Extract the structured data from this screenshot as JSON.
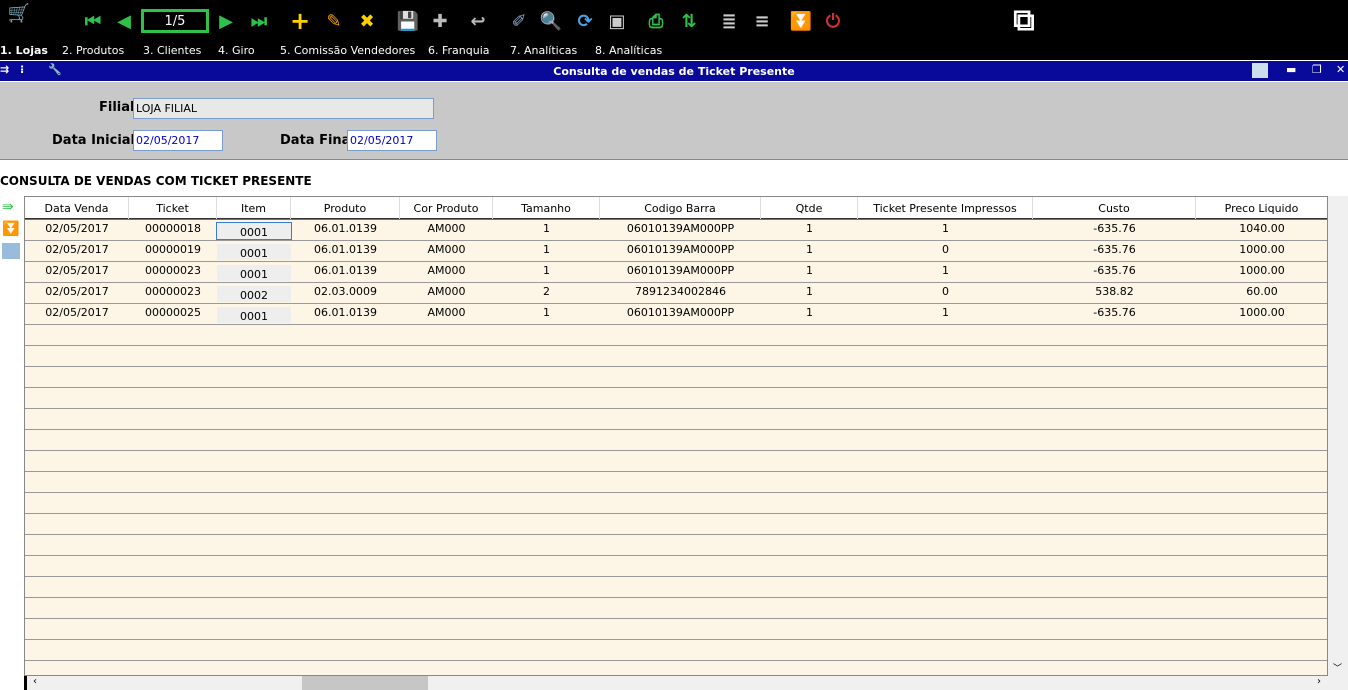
{
  "toolbar": {
    "page_indicator": "1/5",
    "icons": [
      "cart-icon",
      "first-record-icon",
      "prev-record-icon",
      "next-record-icon",
      "last-record-icon",
      "add-icon",
      "edit-icon",
      "delete-icon",
      "save-icon",
      "copy-icon",
      "undo-icon",
      "clear-icon",
      "search-icon",
      "refresh-icon",
      "preview-icon",
      "print-icon",
      "sort-icon",
      "add-line-icon",
      "remove-line-icon",
      "download-icon",
      "power-icon",
      "monitor-icon"
    ]
  },
  "menu": [
    "1. Lojas",
    "2. Produtos",
    "3. Clientes",
    "4. Giro",
    "5. Comissão Vendedores",
    "6. Franquia",
    "7. Analíticas",
    "8. Analíticas"
  ],
  "window": {
    "title": "Consulta de vendas de Ticket Presente"
  },
  "form": {
    "filial_label": "Filial",
    "filial_value": "LOJA FILIAL",
    "data_inicial_label": "Data Inicial",
    "data_inicial_value": "02/05/2017",
    "data_final_label": "Data Final",
    "data_final_value": "02/05/2017"
  },
  "section_title": "CONSULTA DE VENDAS COM TICKET PRESENTE",
  "table": {
    "columns": [
      "Data Venda",
      "Ticket",
      "Item",
      "Produto",
      "Cor Produto",
      "Tamanho",
      "Codigo Barra",
      "Qtde",
      "Ticket Presente Impressos",
      "Custo",
      "Preco Liquido"
    ],
    "rows": [
      [
        "02/05/2017",
        "00000018",
        "0001",
        "06.01.0139",
        "AM000",
        "1",
        "06010139AM000PP",
        "1",
        "1",
        "-635.76",
        "1040.00"
      ],
      [
        "02/05/2017",
        "00000019",
        "0001",
        "06.01.0139",
        "AM000",
        "1",
        "06010139AM000PP",
        "1",
        "0",
        "-635.76",
        "1000.00"
      ],
      [
        "02/05/2017",
        "00000023",
        "0001",
        "06.01.0139",
        "AM000",
        "1",
        "06010139AM000PP",
        "1",
        "1",
        "-635.76",
        "1000.00"
      ],
      [
        "02/05/2017",
        "00000023",
        "0002",
        "02.03.0009",
        "AM000",
        "2",
        "7891234002846",
        "1",
        "0",
        "538.82",
        "60.00"
      ],
      [
        "02/05/2017",
        "00000025",
        "0001",
        "06.01.0139",
        "AM000",
        "1",
        "06010139AM000PP",
        "1",
        "1",
        "-635.76",
        "1000.00"
      ]
    ]
  }
}
